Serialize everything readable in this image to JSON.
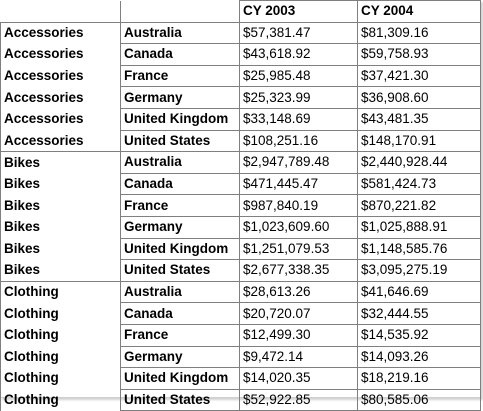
{
  "table": {
    "headers": [
      "",
      "",
      "CY 2003",
      "CY 2004"
    ],
    "rows": [
      {
        "category": "Accessories",
        "country": "Australia",
        "cy2003": "$57,381.47",
        "cy2004": "$81,309.16"
      },
      {
        "category": "Accessories",
        "country": "Canada",
        "cy2003": "$43,618.92",
        "cy2004": "$59,758.93"
      },
      {
        "category": "Accessories",
        "country": "France",
        "cy2003": "$25,985.48",
        "cy2004": "$37,421.30"
      },
      {
        "category": "Accessories",
        "country": "Germany",
        "cy2003": "$25,323.99",
        "cy2004": "$36,908.60"
      },
      {
        "category": "Accessories",
        "country": "United Kingdom",
        "cy2003": "$33,148.69",
        "cy2004": "$43,481.35"
      },
      {
        "category": "Accessories",
        "country": "United States",
        "cy2003": "$108,251.16",
        "cy2004": "$148,170.91"
      },
      {
        "category": "Bikes",
        "country": "Australia",
        "cy2003": "$2,947,789.48",
        "cy2004": "$2,440,928.44"
      },
      {
        "category": "Bikes",
        "country": "Canada",
        "cy2003": "$471,445.47",
        "cy2004": "$581,424.73"
      },
      {
        "category": "Bikes",
        "country": "France",
        "cy2003": "$987,840.19",
        "cy2004": "$870,221.82"
      },
      {
        "category": "Bikes",
        "country": "Germany",
        "cy2003": "$1,023,609.60",
        "cy2004": "$1,025,888.91"
      },
      {
        "category": "Bikes",
        "country": "United Kingdom",
        "cy2003": "$1,251,079.53",
        "cy2004": "$1,148,585.76"
      },
      {
        "category": "Bikes",
        "country": "United States",
        "cy2003": "$2,677,338.35",
        "cy2004": "$3,095,275.19"
      },
      {
        "category": "Clothing",
        "country": "Australia",
        "cy2003": "$28,613.26",
        "cy2004": "$41,646.69"
      },
      {
        "category": "Clothing",
        "country": "Canada",
        "cy2003": "$20,720.07",
        "cy2004": "$32,444.55"
      },
      {
        "category": "Clothing",
        "country": "France",
        "cy2003": "$12,499.30",
        "cy2004": "$14,535.92"
      },
      {
        "category": "Clothing",
        "country": "Germany",
        "cy2003": "$9,472.14",
        "cy2004": "$14,093.26"
      },
      {
        "category": "Clothing",
        "country": "United Kingdom",
        "cy2003": "$14,020.35",
        "cy2004": "$18,219.16"
      },
      {
        "category": "Clothing",
        "country": "United States",
        "cy2003": "$52,922.85",
        "cy2004": "$80,585.06"
      }
    ]
  }
}
